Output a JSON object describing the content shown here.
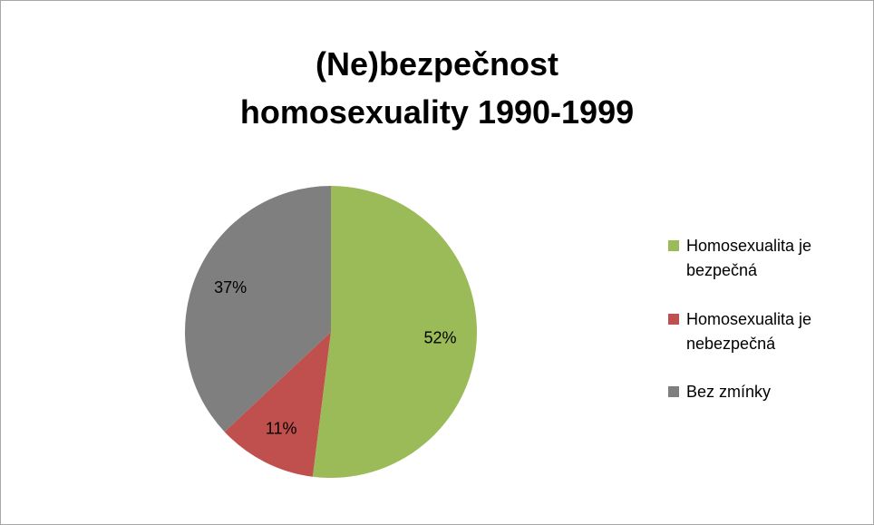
{
  "chart_data": {
    "type": "pie",
    "title": "(Ne)bezpečnost homosexuality 1990-1999",
    "categories": [
      "Homosexualita je bezpečná",
      "Homosexualita je nebezpečná",
      "Bez zmínky"
    ],
    "values": [
      52,
      11,
      37
    ],
    "value_labels": [
      "52%",
      "11%",
      "37%"
    ],
    "colors": [
      "#9bbb59",
      "#c0504d",
      "#7f7f7f"
    ],
    "legend": "right"
  }
}
